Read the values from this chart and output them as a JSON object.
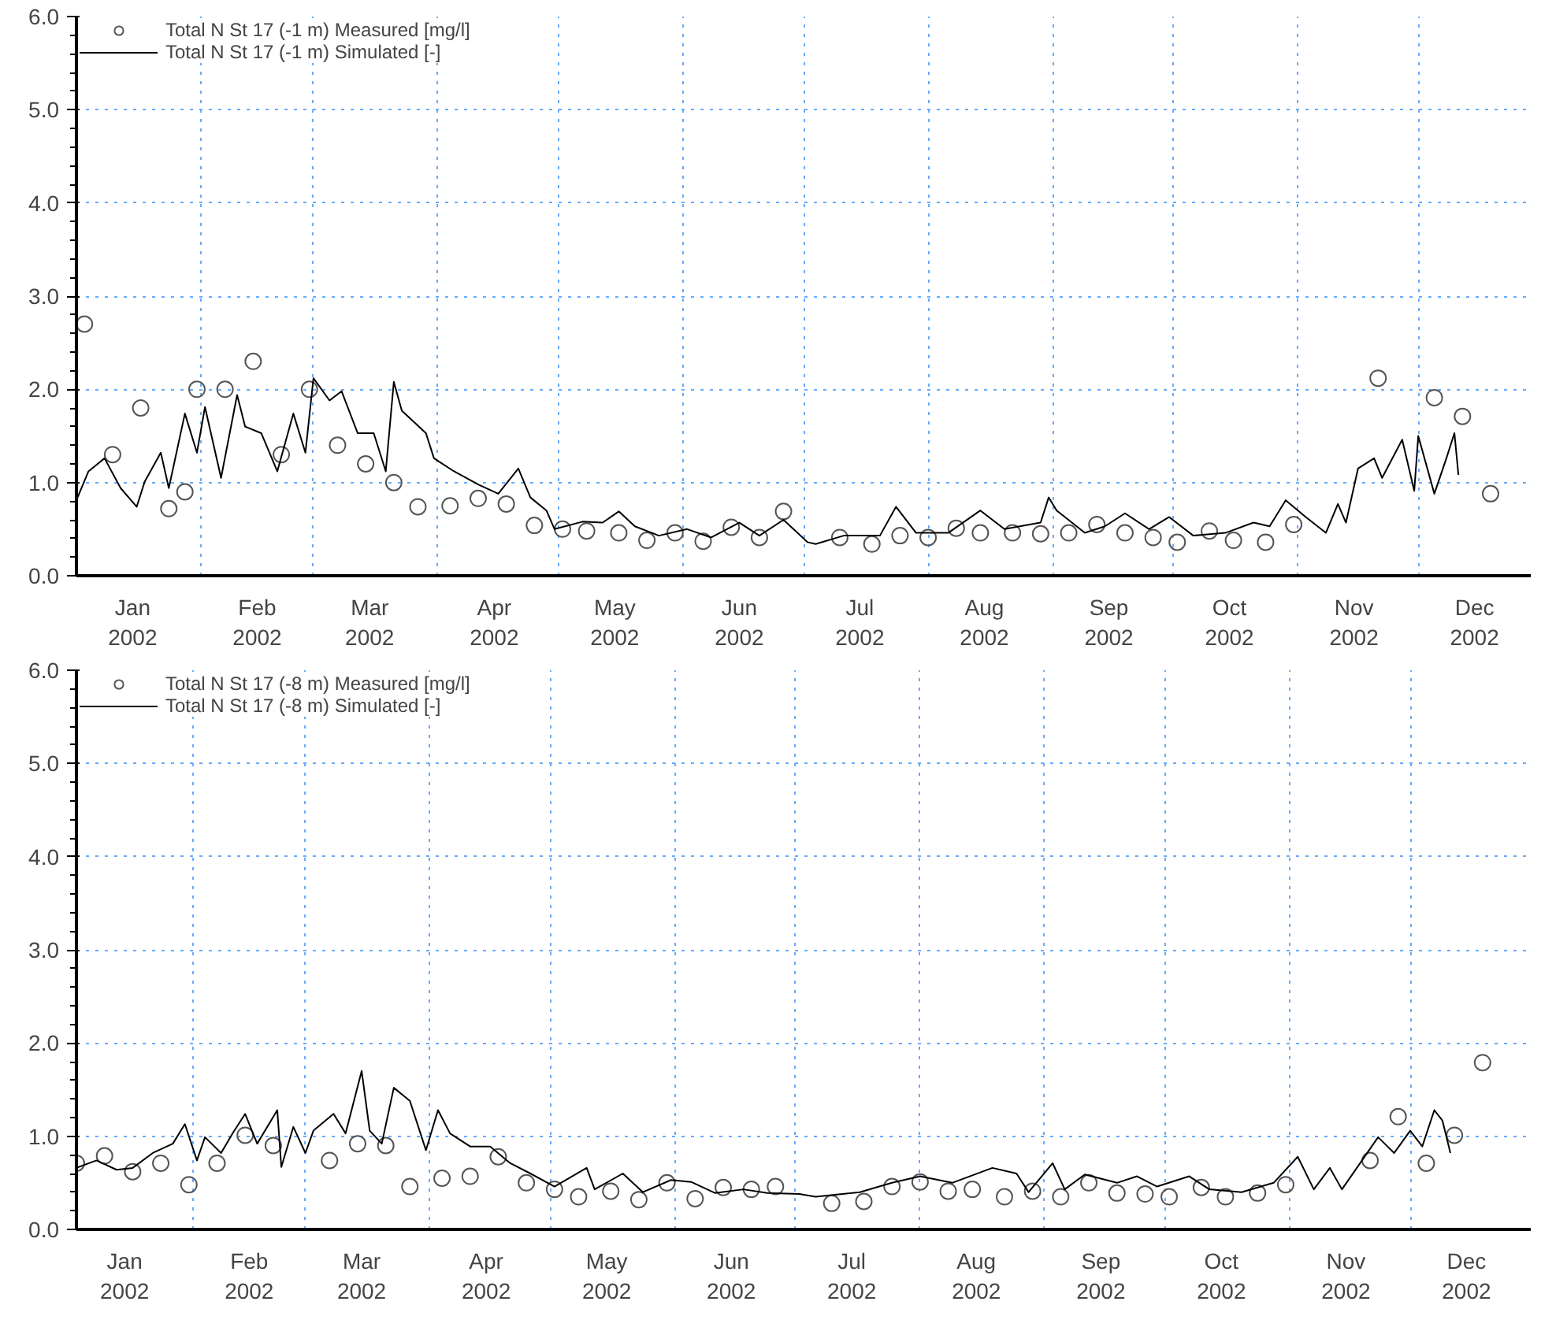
{
  "chart_data": [
    {
      "type": "line",
      "xlim": [
        "2002-01-01",
        "2002-12-29"
      ],
      "ylim": [
        0,
        6
      ],
      "yticks": [
        {
          "value": 0,
          "label": "0.0"
        },
        {
          "value": 1,
          "label": "1.0"
        },
        {
          "value": 2,
          "label": "2.0"
        },
        {
          "value": 3,
          "label": "3.0"
        },
        {
          "value": 4,
          "label": "4.0"
        },
        {
          "value": 5,
          "label": "5.0"
        },
        {
          "value": 6,
          "label": "6.0"
        }
      ],
      "xticks": [
        {
          "value": "2002-01-01",
          "label": null
        },
        {
          "value": "2002-02-01",
          "label": null
        },
        {
          "value": "2002-03-01",
          "label": null
        },
        {
          "value": "2002-04-01",
          "label": null
        },
        {
          "value": "2002-05-01",
          "label": null
        },
        {
          "value": "2002-06-01",
          "label": null
        },
        {
          "value": "2002-07-01",
          "label": null
        },
        {
          "value": "2002-08-01",
          "label": null
        },
        {
          "value": "2002-09-01",
          "label": null
        },
        {
          "value": "2002-10-01",
          "label": null
        },
        {
          "value": "2002-11-01",
          "label": null
        },
        {
          "value": "2002-12-01",
          "label": null
        },
        {
          "value": "2002-01-15",
          "label": "Jan\n2002"
        },
        {
          "value": "2002-02-15",
          "label": "Feb\n2002"
        },
        {
          "value": "2002-03-15",
          "label": "Mar\n2002"
        },
        {
          "value": "2002-04-15",
          "label": "Apr\n2002"
        },
        {
          "value": "2002-05-15",
          "label": "May\n2002"
        },
        {
          "value": "2002-06-15",
          "label": "Jun\n2002"
        },
        {
          "value": "2002-07-15",
          "label": "Jul\n2002"
        },
        {
          "value": "2002-08-15",
          "label": "Aug\n2002"
        },
        {
          "value": "2002-09-15",
          "label": "Sep\n2002"
        },
        {
          "value": "2002-10-15",
          "label": "Oct\n2002"
        },
        {
          "value": "2002-11-15",
          "label": "Nov\n2002"
        },
        {
          "value": "2002-12-15",
          "label": "Dec\n2002"
        }
      ],
      "grid": true,
      "legend": "top left",
      "series": [
        {
          "name": "Total N St 17 (-1 m) Measured [mg/l]",
          "type": "scatter",
          "marker": "circle",
          "color": "#555555",
          "x": [
            "2002-01-03",
            "2002-01-10",
            "2002-01-17",
            "2002-01-24",
            "2002-01-28",
            "2002-01-31",
            "2002-02-07",
            "2002-02-14",
            "2002-02-21",
            "2002-02-28",
            "2002-03-07",
            "2002-03-14",
            "2002-03-21",
            "2002-03-27",
            "2002-04-04",
            "2002-04-11",
            "2002-04-18",
            "2002-04-25",
            "2002-05-02",
            "2002-05-08",
            "2002-05-16",
            "2002-05-23",
            "2002-05-30",
            "2002-06-06",
            "2002-06-13",
            "2002-06-20",
            "2002-06-26",
            "2002-07-10",
            "2002-07-18",
            "2002-07-25",
            "2002-08-01",
            "2002-08-08",
            "2002-08-14",
            "2002-08-22",
            "2002-08-29",
            "2002-09-05",
            "2002-09-12",
            "2002-09-19",
            "2002-09-26",
            "2002-10-02",
            "2002-10-10",
            "2002-10-16",
            "2002-10-24",
            "2002-10-31",
            "2002-11-21",
            "2002-12-05",
            "2002-12-12",
            "2002-12-19"
          ],
          "values": [
            2.7,
            1.3,
            1.8,
            0.72,
            0.9,
            2.0,
            2.0,
            2.3,
            1.3,
            2.0,
            1.4,
            1.2,
            1.0,
            0.74,
            0.75,
            0.83,
            0.77,
            0.54,
            0.5,
            0.48,
            0.46,
            0.38,
            0.46,
            0.37,
            0.52,
            0.41,
            0.69,
            0.41,
            0.34,
            0.43,
            0.41,
            0.51,
            0.46,
            0.46,
            0.45,
            0.46,
            0.55,
            0.46,
            0.41,
            0.36,
            0.48,
            0.38,
            0.36,
            0.55,
            2.12,
            1.91,
            1.71,
            0.88
          ]
        },
        {
          "name": "Total N St 17 (-1 m) Simulated [-]",
          "line_style": "solid",
          "color": "#000000",
          "x": [
            "2002-01-01",
            "2002-01-04",
            "2002-01-08",
            "2002-01-12",
            "2002-01-16",
            "2002-01-18",
            "2002-01-22",
            "2002-01-24",
            "2002-01-28",
            "2002-01-31",
            "2002-02-02",
            "2002-02-06",
            "2002-02-10",
            "2002-02-12",
            "2002-02-16",
            "2002-02-20",
            "2002-02-24",
            "2002-02-27",
            "2002-03-01",
            "2002-03-05",
            "2002-03-08",
            "2002-03-12",
            "2002-03-16",
            "2002-03-19",
            "2002-03-21",
            "2002-03-23",
            "2002-03-29",
            "2002-03-31",
            "2002-04-05",
            "2002-04-11",
            "2002-04-16",
            "2002-04-21",
            "2002-04-24",
            "2002-04-28",
            "2002-04-30",
            "2002-05-07",
            "2002-05-12",
            "2002-05-16",
            "2002-05-20",
            "2002-05-26",
            "2002-06-02",
            "2002-06-08",
            "2002-06-15",
            "2002-06-20",
            "2002-06-26",
            "2002-07-02",
            "2002-07-04",
            "2002-07-11",
            "2002-07-20",
            "2002-07-24",
            "2002-07-29",
            "2002-08-06",
            "2002-08-14",
            "2002-08-20",
            "2002-08-29",
            "2002-08-31",
            "2002-09-02",
            "2002-09-09",
            "2002-09-14",
            "2002-09-19",
            "2002-09-25",
            "2002-09-30",
            "2002-10-06",
            "2002-10-14",
            "2002-10-21",
            "2002-10-25",
            "2002-10-29",
            "2002-11-03",
            "2002-11-08",
            "2002-11-11",
            "2002-11-13",
            "2002-11-16",
            "2002-11-20",
            "2002-11-22",
            "2002-11-27",
            "2002-11-30",
            "2002-12-01",
            "2002-12-05",
            "2002-12-08",
            "2002-12-10",
            "2002-12-11"
          ],
          "values": [
            0.81,
            1.12,
            1.26,
            0.94,
            0.74,
            1.01,
            1.32,
            0.94,
            1.74,
            1.32,
            1.81,
            1.05,
            1.94,
            1.6,
            1.53,
            1.12,
            1.74,
            1.32,
            2.12,
            1.88,
            1.98,
            1.53,
            1.53,
            1.12,
            2.08,
            1.77,
            1.53,
            1.26,
            1.12,
            0.98,
            0.88,
            1.15,
            0.84,
            0.7,
            0.5,
            0.58,
            0.57,
            0.69,
            0.53,
            0.43,
            0.5,
            0.41,
            0.57,
            0.43,
            0.6,
            0.36,
            0.34,
            0.43,
            0.43,
            0.74,
            0.46,
            0.46,
            0.7,
            0.5,
            0.57,
            0.84,
            0.7,
            0.46,
            0.53,
            0.67,
            0.5,
            0.63,
            0.43,
            0.46,
            0.57,
            0.53,
            0.81,
            0.63,
            0.46,
            0.77,
            0.57,
            1.15,
            1.26,
            1.05,
            1.46,
            0.91,
            1.5,
            0.88,
            1.26,
            1.53,
            1.08
          ]
        }
      ]
    },
    {
      "type": "line",
      "xlim": [
        "2002-01-03",
        "2002-12-31"
      ],
      "ylim": [
        0,
        6
      ],
      "yticks": [
        {
          "value": 0,
          "label": "0.0"
        },
        {
          "value": 1,
          "label": "1.0"
        },
        {
          "value": 2,
          "label": "2.0"
        },
        {
          "value": 3,
          "label": "3.0"
        },
        {
          "value": 4,
          "label": "4.0"
        },
        {
          "value": 5,
          "label": "5.0"
        },
        {
          "value": 6,
          "label": "6.0"
        }
      ],
      "xticks": [
        {
          "value": "2002-02-01",
          "label": null
        },
        {
          "value": "2002-03-01",
          "label": null
        },
        {
          "value": "2002-04-01",
          "label": null
        },
        {
          "value": "2002-05-01",
          "label": null
        },
        {
          "value": "2002-06-01",
          "label": null
        },
        {
          "value": "2002-07-01",
          "label": null
        },
        {
          "value": "2002-08-01",
          "label": null
        },
        {
          "value": "2002-09-01",
          "label": null
        },
        {
          "value": "2002-10-01",
          "label": null
        },
        {
          "value": "2002-11-01",
          "label": null
        },
        {
          "value": "2002-12-01",
          "label": null
        },
        {
          "value": "2002-01-15",
          "label": "Jan\n2002"
        },
        {
          "value": "2002-02-15",
          "label": "Feb\n2002"
        },
        {
          "value": "2002-03-15",
          "label": "Mar\n2002"
        },
        {
          "value": "2002-04-15",
          "label": "Apr\n2002"
        },
        {
          "value": "2002-05-15",
          "label": "May\n2002"
        },
        {
          "value": "2002-06-15",
          "label": "Jun\n2002"
        },
        {
          "value": "2002-07-15",
          "label": "Jul\n2002"
        },
        {
          "value": "2002-08-15",
          "label": "Aug\n2002"
        },
        {
          "value": "2002-09-15",
          "label": "Sep\n2002"
        },
        {
          "value": "2002-10-15",
          "label": "Oct\n2002"
        },
        {
          "value": "2002-11-15",
          "label": "Nov\n2002"
        },
        {
          "value": "2002-12-15",
          "label": "Dec\n2002"
        }
      ],
      "grid": true,
      "legend": "top left",
      "series": [
        {
          "name": "Total N St 17 (-8 m) Measured [mg/l]",
          "type": "scatter",
          "marker": "circle",
          "color": "#555555",
          "x": [
            "2002-01-03",
            "2002-01-10",
            "2002-01-17",
            "2002-01-24",
            "2002-01-31",
            "2002-02-07",
            "2002-02-14",
            "2002-02-21",
            "2002-03-07",
            "2002-03-14",
            "2002-03-21",
            "2002-03-27",
            "2002-04-04",
            "2002-04-11",
            "2002-04-18",
            "2002-04-25",
            "2002-05-02",
            "2002-05-08",
            "2002-05-16",
            "2002-05-23",
            "2002-05-30",
            "2002-06-06",
            "2002-06-13",
            "2002-06-20",
            "2002-06-26",
            "2002-07-10",
            "2002-07-18",
            "2002-07-25",
            "2002-08-01",
            "2002-08-08",
            "2002-08-14",
            "2002-08-22",
            "2002-08-29",
            "2002-09-05",
            "2002-09-12",
            "2002-09-19",
            "2002-09-26",
            "2002-10-02",
            "2002-10-10",
            "2002-10-16",
            "2002-10-24",
            "2002-10-31",
            "2002-11-21",
            "2002-11-28",
            "2002-12-05",
            "2002-12-12",
            "2002-12-19"
          ],
          "values": [
            0.71,
            0.79,
            0.62,
            0.71,
            0.48,
            0.71,
            1.01,
            0.9,
            0.74,
            0.92,
            0.9,
            0.46,
            0.55,
            0.57,
            0.78,
            0.5,
            0.43,
            0.35,
            0.41,
            0.32,
            0.5,
            0.33,
            0.45,
            0.43,
            0.46,
            0.28,
            0.3,
            0.46,
            0.51,
            0.41,
            0.43,
            0.35,
            0.41,
            0.35,
            0.5,
            0.39,
            0.38,
            0.35,
            0.45,
            0.35,
            0.39,
            0.48,
            0.74,
            1.21,
            0.71,
            1.01,
            1.79
          ]
        },
        {
          "name": "Total N St 17 (-8 m) Simulated [-]",
          "line_style": "solid",
          "color": "#000000",
          "x": [
            "2002-01-03",
            "2002-01-08",
            "2002-01-13",
            "2002-01-17",
            "2002-01-22",
            "2002-01-27",
            "2002-01-30",
            "2002-02-02",
            "2002-02-04",
            "2002-02-08",
            "2002-02-11",
            "2002-02-14",
            "2002-02-17",
            "2002-02-22",
            "2002-02-23",
            "2002-02-26",
            "2002-03-01",
            "2002-03-03",
            "2002-03-08",
            "2002-03-11",
            "2002-03-15",
            "2002-03-17",
            "2002-03-20",
            "2002-03-23",
            "2002-03-27",
            "2002-03-31",
            "2002-04-03",
            "2002-04-06",
            "2002-04-11",
            "2002-04-16",
            "2002-04-21",
            "2002-04-26",
            "2002-05-02",
            "2002-05-10",
            "2002-05-12",
            "2002-05-19",
            "2002-05-24",
            "2002-05-31",
            "2002-06-05",
            "2002-06-11",
            "2002-06-18",
            "2002-06-24",
            "2002-07-02",
            "2002-07-06",
            "2002-07-17",
            "2002-07-25",
            "2002-08-01",
            "2002-08-09",
            "2002-08-19",
            "2002-08-25",
            "2002-08-28",
            "2002-09-03",
            "2002-09-06",
            "2002-09-11",
            "2002-09-19",
            "2002-09-24",
            "2002-09-29",
            "2002-10-07",
            "2002-10-12",
            "2002-10-20",
            "2002-10-28",
            "2002-11-03",
            "2002-11-07",
            "2002-11-11",
            "2002-11-14",
            "2002-11-19",
            "2002-11-23",
            "2002-11-27",
            "2002-12-01",
            "2002-12-04",
            "2002-12-07",
            "2002-12-09",
            "2002-12-11"
          ],
          "values": [
            0.66,
            0.74,
            0.64,
            0.66,
            0.82,
            0.92,
            1.13,
            0.74,
            0.99,
            0.82,
            1.04,
            1.24,
            0.92,
            1.28,
            0.67,
            1.1,
            0.82,
            1.06,
            1.24,
            1.03,
            1.7,
            1.06,
            0.92,
            1.52,
            1.38,
            0.85,
            1.28,
            1.03,
            0.89,
            0.89,
            0.71,
            0.6,
            0.46,
            0.66,
            0.43,
            0.6,
            0.4,
            0.53,
            0.51,
            0.39,
            0.43,
            0.39,
            0.38,
            0.35,
            0.4,
            0.5,
            0.57,
            0.5,
            0.66,
            0.6,
            0.4,
            0.71,
            0.43,
            0.59,
            0.5,
            0.57,
            0.46,
            0.57,
            0.43,
            0.4,
            0.5,
            0.78,
            0.43,
            0.66,
            0.43,
            0.74,
            0.99,
            0.82,
            1.06,
            0.89,
            1.28,
            1.17,
            0.82
          ]
        }
      ]
    }
  ]
}
